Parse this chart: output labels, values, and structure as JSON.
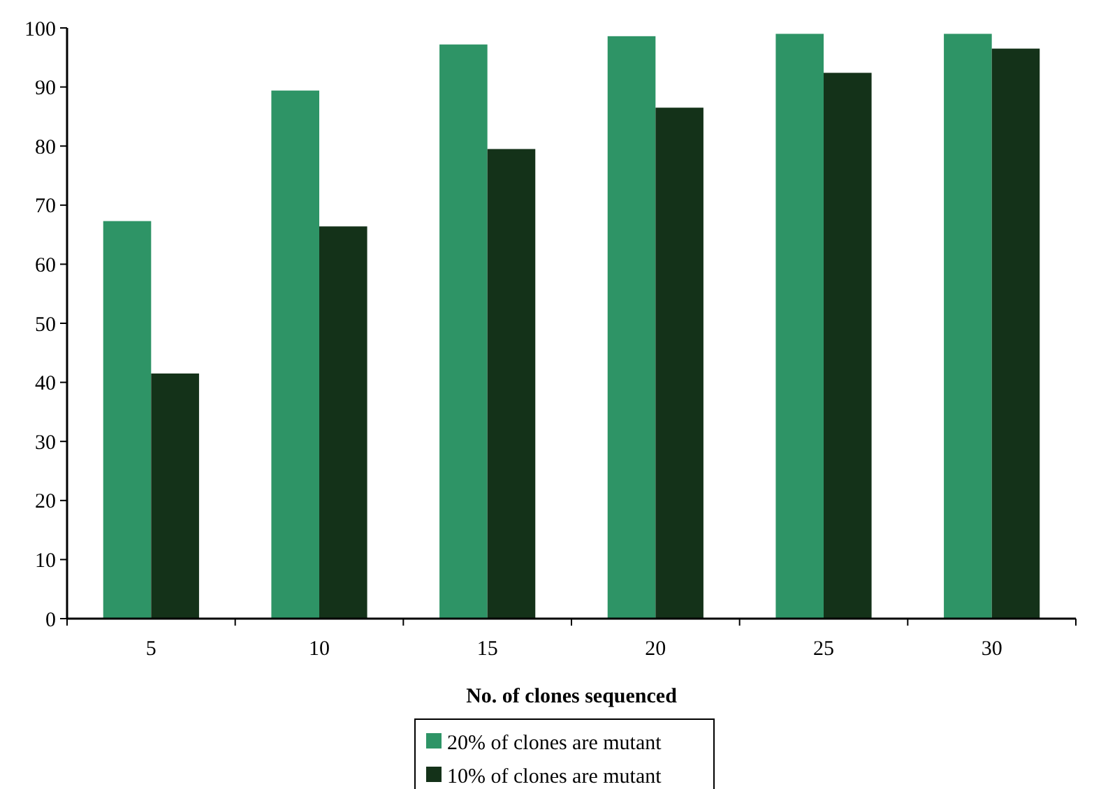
{
  "chart_data": {
    "type": "bar",
    "xlabel": "No. of clones sequenced",
    "categories": [
      "5",
      "10",
      "15",
      "20",
      "25",
      "30"
    ],
    "series": [
      {
        "name": "20% of clones are mutant",
        "color": "#2e9466",
        "values": [
          67.3,
          89.4,
          97.2,
          98.6,
          99.0,
          99.0
        ]
      },
      {
        "name": "10% of clones are mutant",
        "color": "#143219",
        "values": [
          41.5,
          66.4,
          79.5,
          86.5,
          92.4,
          96.5
        ]
      }
    ],
    "ylim": [
      0,
      100
    ],
    "yticks": [
      0,
      10,
      20,
      30,
      40,
      50,
      60,
      70,
      80,
      90,
      100
    ],
    "legend": "bottom"
  }
}
